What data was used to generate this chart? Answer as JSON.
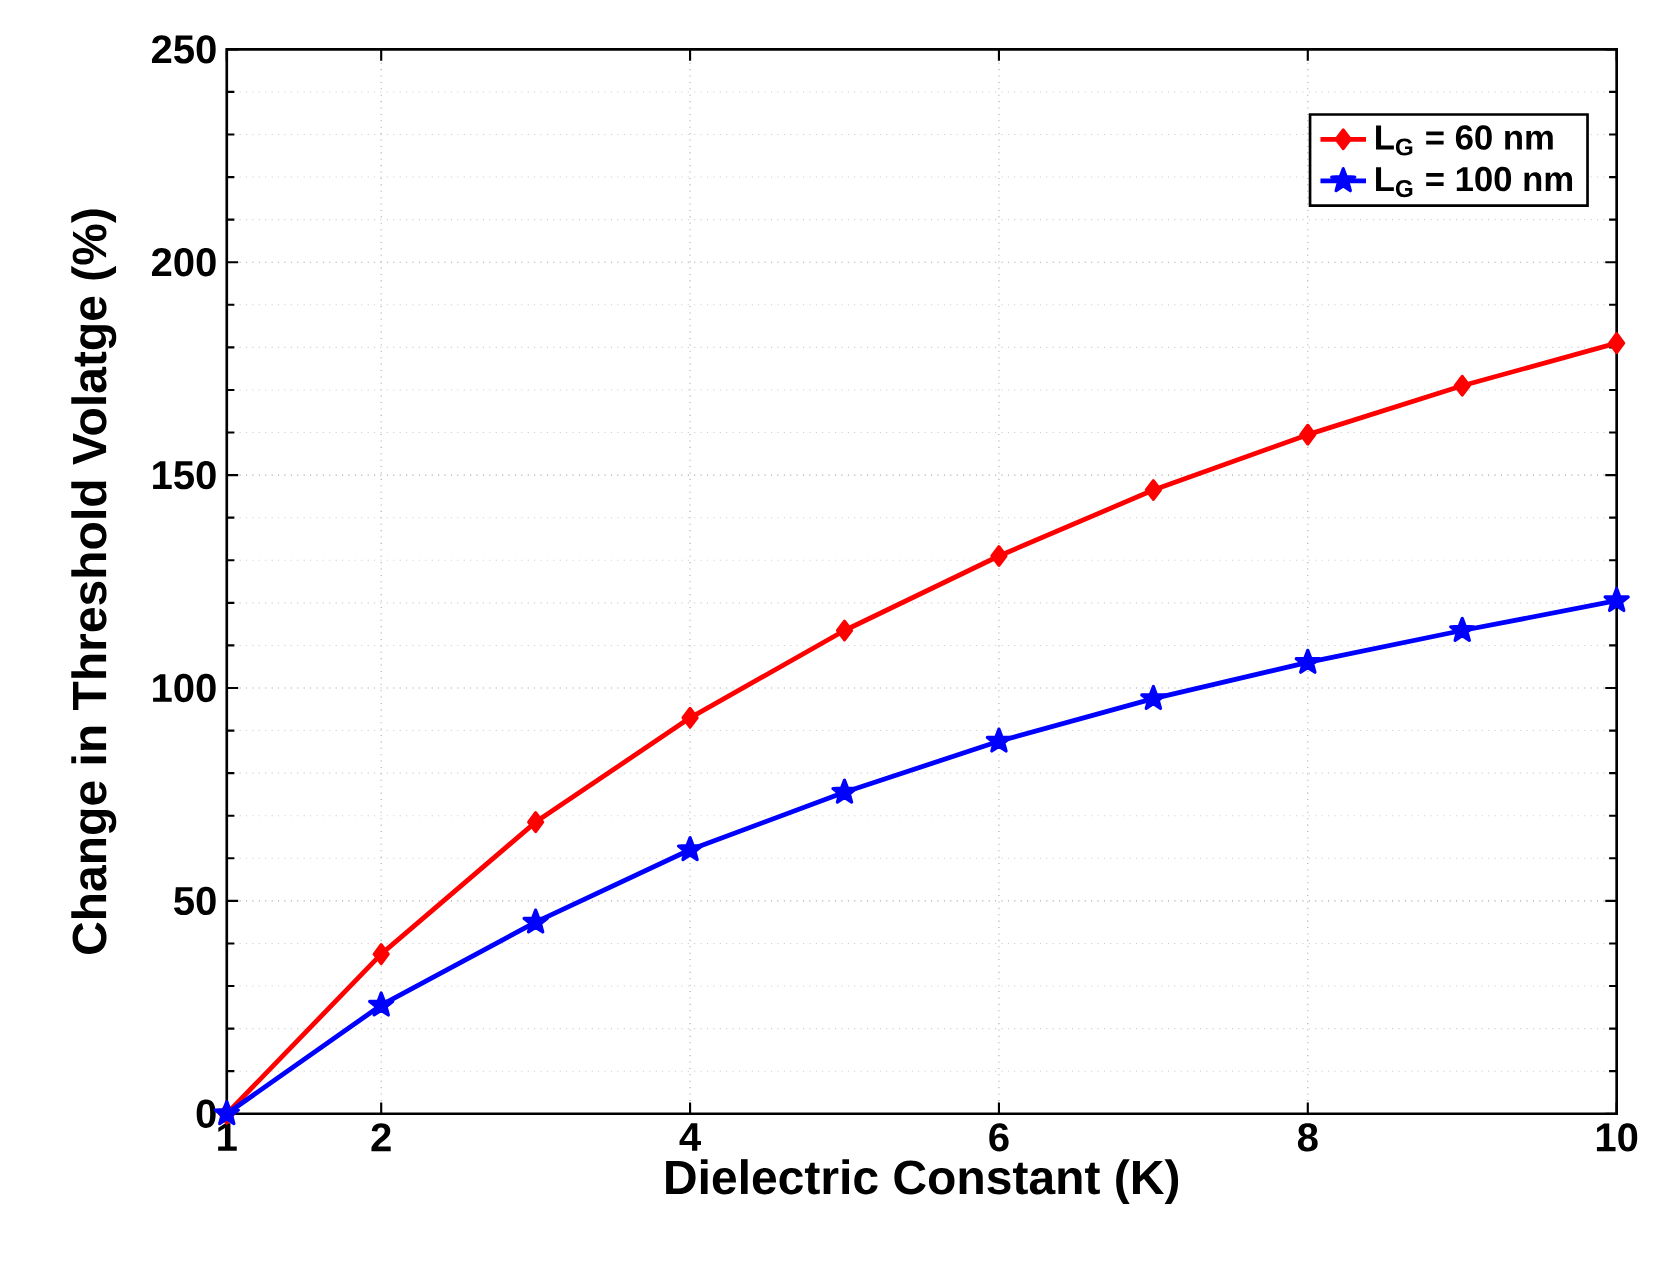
{
  "chart_data": {
    "type": "line",
    "xlabel": "Dielectric Constant (K)",
    "ylabel": "Change in Threshold Volatge (%)",
    "x": [
      1,
      2,
      3,
      4,
      5,
      6,
      7,
      8,
      9,
      10
    ],
    "series": [
      {
        "name": "L$_{G}$ = 60 nm",
        "color": "#ff0000",
        "marker": "diamond",
        "values": [
          0,
          37.5,
          68.5,
          93,
          113.5,
          131,
          146.5,
          159.5,
          171,
          181
        ]
      },
      {
        "name": "L$_{G}$ = 100 nm",
        "color": "#0000ff",
        "marker": "star",
        "values": [
          0,
          25.5,
          45,
          62,
          75.5,
          87.5,
          97.5,
          106,
          113.5,
          120.5
        ]
      }
    ],
    "xlim": [
      1,
      10
    ],
    "ylim": [
      0,
      250
    ],
    "xticks": [
      1,
      2,
      4,
      6,
      8,
      10
    ],
    "yticks": [
      0,
      50,
      100,
      150,
      200,
      250
    ],
    "grid": true,
    "legend": "top right",
    "line_style": "solid"
  }
}
